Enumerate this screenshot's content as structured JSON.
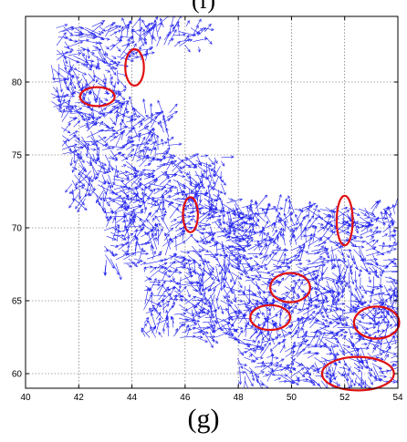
{
  "figure": {
    "top_label": "(f)",
    "caption": "(g)"
  },
  "chart_data": {
    "type": "quiver",
    "title": "",
    "xlabel": "",
    "ylabel": "",
    "xlim": [
      40,
      54
    ],
    "ylim": [
      59,
      84.5
    ],
    "x_ticks": [
      40,
      42,
      44,
      46,
      48,
      50,
      52,
      54
    ],
    "y_ticks": [
      60,
      65,
      70,
      75,
      80
    ],
    "grid": true,
    "grid_style": "dotted",
    "vector_color": "#2323ee",
    "highlight_color": "#e01010",
    "vector_field_regions": [
      {
        "x": [
          41.2,
          44.5
        ],
        "y": [
          81.5,
          84.0
        ]
      },
      {
        "x": [
          44.5,
          46.8
        ],
        "y": [
          82.5,
          84.0
        ]
      },
      {
        "x": [
          41.0,
          43.6
        ],
        "y": [
          78.0,
          81.5
        ]
      },
      {
        "x": [
          41.4,
          45.5
        ],
        "y": [
          75.0,
          78.0
        ]
      },
      {
        "x": [
          41.8,
          47.5
        ],
        "y": [
          72.0,
          75.0
        ]
      },
      {
        "x": [
          43.0,
          48.0
        ],
        "y": [
          67.5,
          72.0
        ]
      },
      {
        "x": [
          47.5,
          54.0
        ],
        "y": [
          67.5,
          71.5
        ]
      },
      {
        "x": [
          44.5,
          54.0
        ],
        "y": [
          62.5,
          67.5
        ]
      },
      {
        "x": [
          48.0,
          54.0
        ],
        "y": [
          59.5,
          62.5
        ]
      }
    ],
    "highlight_ellipses": [
      {
        "cx": 44.1,
        "cy": 81.0,
        "rx": 0.35,
        "ry": 1.25
      },
      {
        "cx": 42.7,
        "cy": 79.0,
        "rx": 0.65,
        "ry": 0.65
      },
      {
        "cx": 46.2,
        "cy": 70.9,
        "rx": 0.28,
        "ry": 1.2
      },
      {
        "cx": 52.0,
        "cy": 70.5,
        "rx": 0.3,
        "ry": 1.7
      },
      {
        "cx": 49.95,
        "cy": 65.9,
        "rx": 0.75,
        "ry": 1.0
      },
      {
        "cx": 49.2,
        "cy": 63.85,
        "rx": 0.75,
        "ry": 0.85
      },
      {
        "cx": 53.2,
        "cy": 63.5,
        "rx": 0.85,
        "ry": 1.1
      },
      {
        "cx": 52.5,
        "cy": 60.0,
        "rx": 1.35,
        "ry": 1.15
      }
    ]
  }
}
